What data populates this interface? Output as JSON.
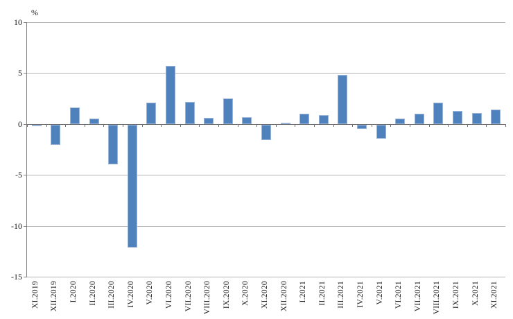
{
  "chart_data": {
    "type": "bar",
    "title": "",
    "xlabel": "",
    "ylabel": "%",
    "categories": [
      "XI.2019",
      "XII.2019",
      "I.2020",
      "II.2020",
      "III.2020",
      "IV.2020",
      "V.2020",
      "VI.2020",
      "VII.2020",
      "VIII.2020",
      "IX.2020",
      "X.2020",
      "XI.2020",
      "XII.2020",
      "I.2021",
      "II.2021",
      "III.2021",
      "IV.2021",
      "V.2021",
      "VI.2021",
      "VII.2021",
      "VIII.2021",
      "IX.2021",
      "X.2021",
      "XI.2021"
    ],
    "values": [
      -0.1,
      -2.0,
      1.6,
      0.5,
      -3.9,
      -12.1,
      2.1,
      5.7,
      2.2,
      0.6,
      2.5,
      0.7,
      -1.5,
      0.1,
      1.0,
      0.9,
      4.8,
      -0.4,
      -1.4,
      0.5,
      1.0,
      2.1,
      1.3,
      1.1,
      1.4
    ],
    "ylim": [
      -15,
      10
    ],
    "yticks": [
      10,
      5,
      0,
      -5,
      -10,
      -15
    ],
    "grid": "on",
    "legend": "none",
    "colors": {
      "bar_fill": "#4f81bd",
      "bar_border": "#9ab5d9",
      "gridline": "#b3b3b3",
      "axis": "#808080",
      "zero_line": "#6e6e6e",
      "text": "#1a1a1a"
    }
  }
}
